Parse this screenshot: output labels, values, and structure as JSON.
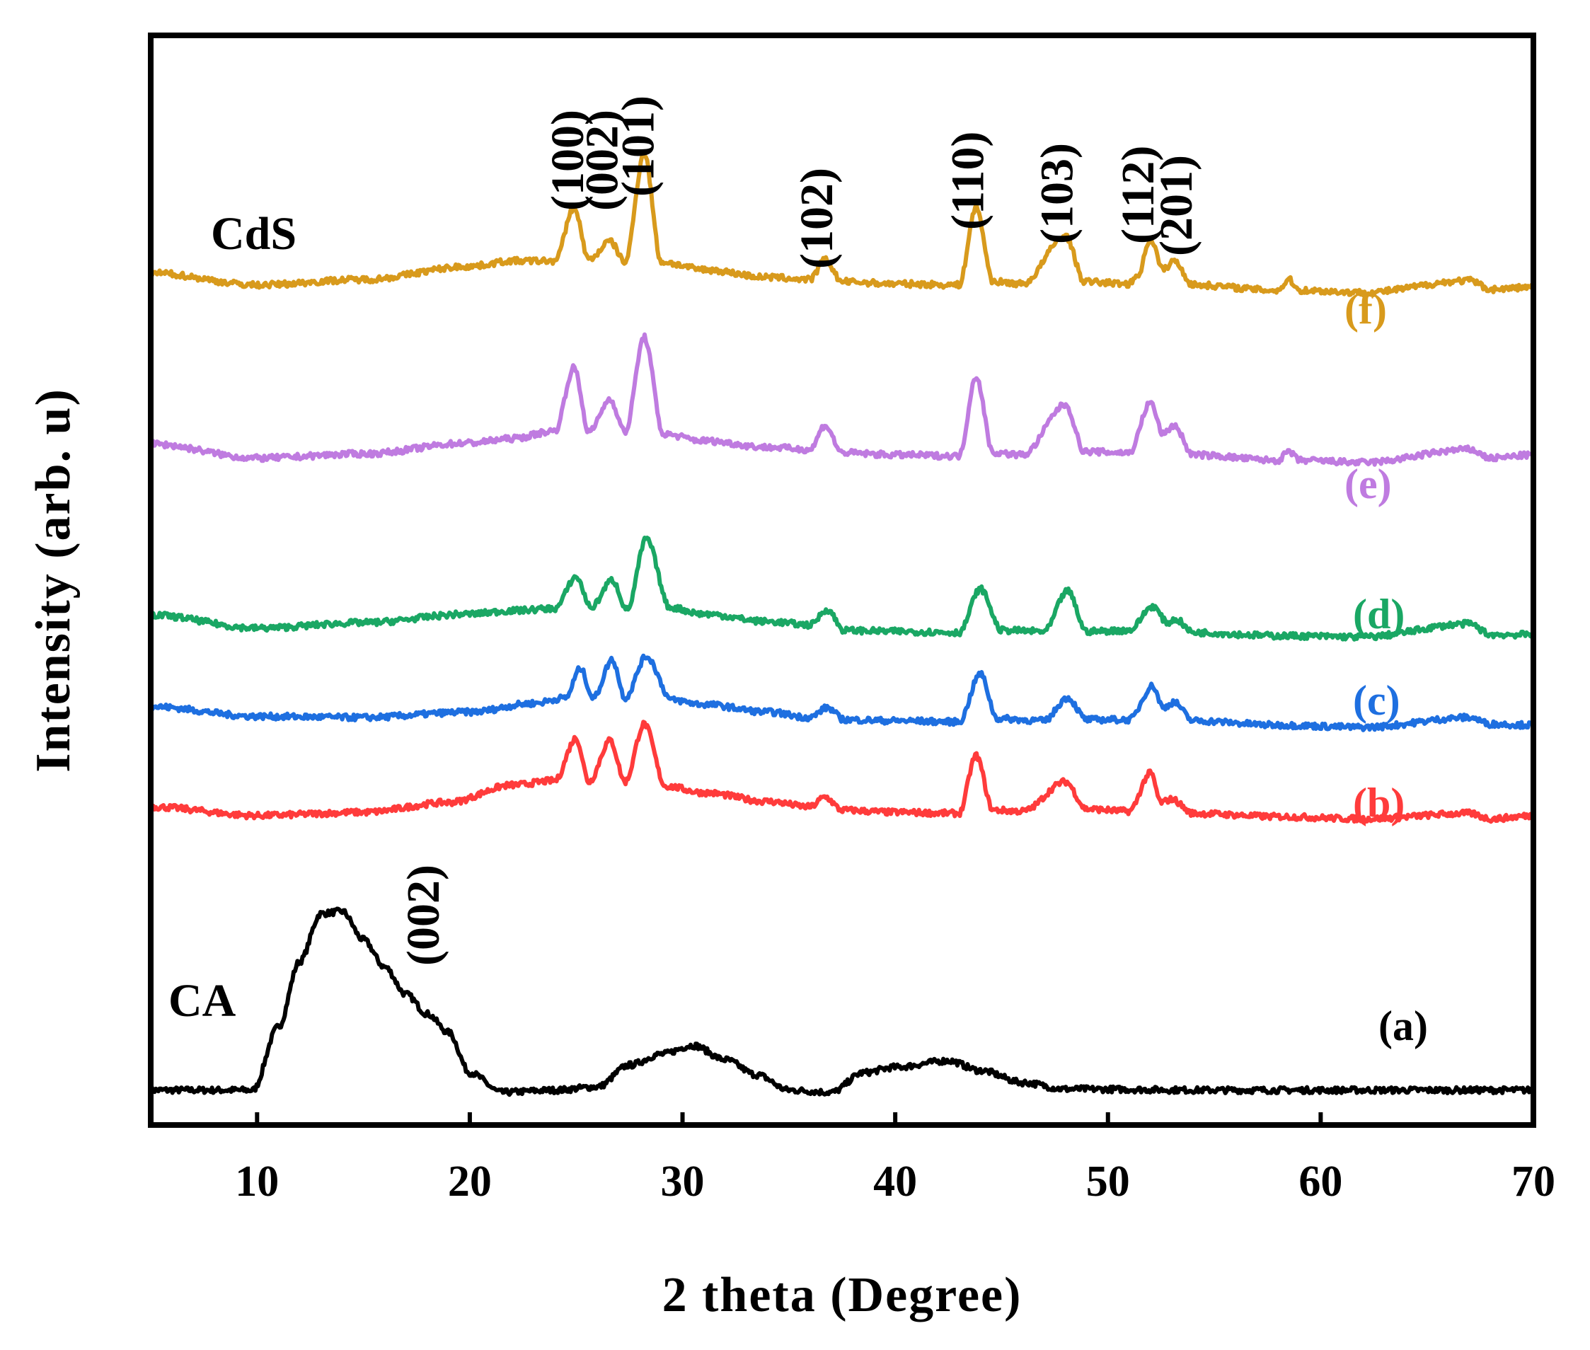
{
  "chart_data": {
    "type": "line",
    "title": "",
    "xlabel": "2 theta (Degree)",
    "ylabel": "Intensity (arb. u)",
    "xlim": [
      5,
      70
    ],
    "ylim": [
      0,
      100
    ],
    "xticks": [
      10,
      20,
      30,
      40,
      50,
      60,
      70
    ],
    "grid": false,
    "legend": "none",
    "series": [
      {
        "name": "(a)",
        "sample": "CA",
        "color": "#000000",
        "baseline": 3.2,
        "points": [
          [
            5,
            3.2
          ],
          [
            9.8,
            3.2
          ],
          [
            11,
            9
          ],
          [
            12,
            15
          ],
          [
            13,
            19.4
          ],
          [
            14,
            19.6
          ],
          [
            15,
            17
          ],
          [
            16,
            14.5
          ],
          [
            17,
            12
          ],
          [
            18,
            10.2
          ],
          [
            19,
            8.5
          ],
          [
            20,
            4.8
          ],
          [
            21.5,
            3
          ],
          [
            24,
            3.2
          ],
          [
            26,
            3.5
          ],
          [
            27.5,
            5.5
          ],
          [
            29,
            6.5
          ],
          [
            30.5,
            7.3
          ],
          [
            32,
            6
          ],
          [
            33.5,
            4.6
          ],
          [
            35,
            3.2
          ],
          [
            37,
            3
          ],
          [
            38.5,
            4.8
          ],
          [
            40,
            5.3
          ],
          [
            42.5,
            5.9
          ],
          [
            44,
            5
          ],
          [
            46,
            3.9
          ],
          [
            48,
            3.3
          ],
          [
            55,
            3.2
          ],
          [
            70,
            3.2
          ]
        ]
      },
      {
        "name": "(b)",
        "color": "#ff3b3b",
        "baseline": 29,
        "points": [
          [
            5,
            29.2
          ],
          [
            10,
            28.4
          ],
          [
            15,
            28.7
          ],
          [
            19,
            29.6
          ],
          [
            22,
            31.2
          ],
          [
            24,
            31.6
          ],
          [
            25,
            35.5
          ],
          [
            25.6,
            31.5
          ],
          [
            26.6,
            35.3
          ],
          [
            27.3,
            31.5
          ],
          [
            28.2,
            36.8
          ],
          [
            29.2,
            31.1
          ],
          [
            31,
            30.5
          ],
          [
            34,
            29.7
          ],
          [
            36,
            29.2
          ],
          [
            36.7,
            30.1
          ],
          [
            37.5,
            28.9
          ],
          [
            40,
            28.7
          ],
          [
            43,
            28.6
          ],
          [
            43.8,
            33.9
          ],
          [
            44.6,
            28.9
          ],
          [
            46,
            28.8
          ],
          [
            48,
            31.5
          ],
          [
            49,
            29
          ],
          [
            51,
            28.8
          ],
          [
            52,
            32.3
          ],
          [
            52.5,
            29.6
          ],
          [
            53,
            29.9
          ],
          [
            54,
            28.6
          ],
          [
            58,
            28.3
          ],
          [
            62,
            28.1
          ],
          [
            67,
            28.6
          ],
          [
            68,
            28.1
          ],
          [
            70,
            28.4
          ]
        ]
      },
      {
        "name": "(c)",
        "color": "#1e6fe0",
        "baseline": 37,
        "points": [
          [
            5,
            38.4
          ],
          [
            10,
            37.5
          ],
          [
            15,
            37.4
          ],
          [
            20,
            37.9
          ],
          [
            23,
            38.7
          ],
          [
            24.5,
            39.2
          ],
          [
            25.2,
            41.9
          ],
          [
            25.8,
            39.2
          ],
          [
            26.7,
            42.7
          ],
          [
            27.3,
            39.2
          ],
          [
            28.3,
            43
          ],
          [
            29.5,
            39
          ],
          [
            31,
            38.6
          ],
          [
            34,
            37.9
          ],
          [
            36,
            37.4
          ],
          [
            36.8,
            38.3
          ],
          [
            37.6,
            37.2
          ],
          [
            40,
            37.1
          ],
          [
            43,
            37
          ],
          [
            44,
            41.4
          ],
          [
            44.8,
            37.3
          ],
          [
            47,
            37.1
          ],
          [
            48.1,
            39.2
          ],
          [
            49,
            37.2
          ],
          [
            51,
            37.2
          ],
          [
            52.1,
            40.3
          ],
          [
            52.6,
            38.3
          ],
          [
            53.1,
            38.8
          ],
          [
            54,
            37.1
          ],
          [
            58,
            36.7
          ],
          [
            62,
            36.5
          ],
          [
            67,
            37.4
          ],
          [
            68,
            36.8
          ],
          [
            70,
            36.7
          ]
        ]
      },
      {
        "name": "(d)",
        "color": "#1aa764",
        "baseline": 45,
        "points": [
          [
            5,
            46.8
          ],
          [
            10,
            45.6
          ],
          [
            15,
            46.1
          ],
          [
            20,
            46.9
          ],
          [
            22,
            47.2
          ],
          [
            24,
            47.4
          ],
          [
            25,
            50.3
          ],
          [
            25.7,
            47.5
          ],
          [
            26.7,
            50
          ],
          [
            27.4,
            47.3
          ],
          [
            28.3,
            53.8
          ],
          [
            29.4,
            47.5
          ],
          [
            31,
            46.9
          ],
          [
            34,
            46.2
          ],
          [
            36,
            45.9
          ],
          [
            36.8,
            47.3
          ],
          [
            37.6,
            45.4
          ],
          [
            40,
            45.3
          ],
          [
            43,
            45.2
          ],
          [
            44,
            49.2
          ],
          [
            45,
            45.4
          ],
          [
            47,
            45.3
          ],
          [
            48.1,
            49
          ],
          [
            49,
            45.3
          ],
          [
            51,
            45.4
          ],
          [
            52.1,
            47.6
          ],
          [
            52.8,
            46.1
          ],
          [
            53.2,
            46.4
          ],
          [
            54,
            45.2
          ],
          [
            58,
            44.9
          ],
          [
            62,
            44.8
          ],
          [
            67,
            46
          ],
          [
            68,
            45
          ],
          [
            70,
            45
          ]
        ]
      },
      {
        "name": "(e)",
        "color": "#bf7be0",
        "baseline": 61,
        "points": [
          [
            5,
            62.5
          ],
          [
            10,
            61.2
          ],
          [
            15,
            61.6
          ],
          [
            20,
            62.6
          ],
          [
            22,
            63
          ],
          [
            24,
            63.7
          ],
          [
            24.9,
            69.5
          ],
          [
            25.6,
            63.6
          ],
          [
            26.6,
            66.6
          ],
          [
            27.3,
            63.6
          ],
          [
            28.2,
            72.3
          ],
          [
            29.1,
            63.4
          ],
          [
            31,
            62.8
          ],
          [
            34,
            62.2
          ],
          [
            36,
            62
          ],
          [
            36.7,
            64.2
          ],
          [
            37.5,
            61.7
          ],
          [
            40,
            61.5
          ],
          [
            43,
            61.4
          ],
          [
            43.8,
            68.7
          ],
          [
            44.6,
            61.7
          ],
          [
            46,
            61.5
          ],
          [
            48,
            66.1
          ],
          [
            48.9,
            61.8
          ],
          [
            51,
            61.7
          ],
          [
            52,
            66.3
          ],
          [
            52.6,
            63.4
          ],
          [
            53.1,
            64.2
          ],
          [
            54,
            61.5
          ],
          [
            58,
            61
          ],
          [
            58.5,
            61.8
          ],
          [
            59,
            61
          ],
          [
            62,
            60.8
          ],
          [
            67,
            62
          ],
          [
            68,
            61.2
          ],
          [
            70,
            61.5
          ]
        ]
      },
      {
        "name": "(f)",
        "sample": "CdS",
        "color": "#d89a1c",
        "baseline": 77,
        "points": [
          [
            5,
            78.2
          ],
          [
            10,
            77.1
          ],
          [
            15,
            77.6
          ],
          [
            20,
            78.8
          ],
          [
            22,
            79.3
          ],
          [
            24,
            79.3
          ],
          [
            24.9,
            84.2
          ],
          [
            25.6,
            79.4
          ],
          [
            26.6,
            81.1
          ],
          [
            27.3,
            79.2
          ],
          [
            28.2,
            89.2
          ],
          [
            29,
            79.2
          ],
          [
            31,
            78.5
          ],
          [
            34,
            77.8
          ],
          [
            36,
            77.6
          ],
          [
            36.7,
            79.4
          ],
          [
            37.5,
            77.4
          ],
          [
            40,
            77.2
          ],
          [
            43,
            77.1
          ],
          [
            43.8,
            84.2
          ],
          [
            44.6,
            77.4
          ],
          [
            46,
            77.2
          ],
          [
            48,
            81.6
          ],
          [
            48.9,
            77.4
          ],
          [
            51,
            77.2
          ],
          [
            51.4,
            78
          ],
          [
            52,
            81.3
          ],
          [
            52.6,
            78.5
          ],
          [
            53.1,
            79.3
          ],
          [
            54,
            77.1
          ],
          [
            58,
            76.6
          ],
          [
            58.5,
            77.6
          ],
          [
            59,
            76.6
          ],
          [
            62,
            76.4
          ],
          [
            67,
            77.5
          ],
          [
            68,
            76.7
          ],
          [
            70,
            76.9
          ]
        ]
      }
    ],
    "series_labels": [
      "(a)",
      "(b)",
      "(c)",
      "(d)",
      "(e)",
      "(f)"
    ],
    "sample_labels": [
      "CA",
      "CdS"
    ],
    "annotations": [
      {
        "text": "(100)",
        "x": 25.0
      },
      {
        "text": "(002)",
        "x": 26.6
      },
      {
        "text": "(101)",
        "x": 28.3
      },
      {
        "text": "(102)",
        "x": 36.7
      },
      {
        "text": "(110)",
        "x": 43.8
      },
      {
        "text": "(103)",
        "x": 48.0
      },
      {
        "text": "(112)",
        "x": 51.8
      },
      {
        "text": "(201)",
        "x": 53.6
      },
      {
        "text": "(002)",
        "x": 18.2
      }
    ]
  }
}
